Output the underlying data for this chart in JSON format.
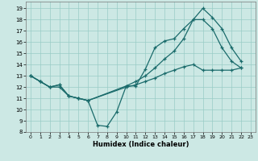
{
  "bg_color": "#cce8e4",
  "grid_color": "#99ccc6",
  "line_color": "#1a6b6b",
  "xlabel": "Humidex (Indice chaleur)",
  "xlim": [
    -0.5,
    23.5
  ],
  "ylim": [
    8,
    19.6
  ],
  "yticks": [
    8,
    9,
    10,
    11,
    12,
    13,
    14,
    15,
    16,
    17,
    18,
    19
  ],
  "xticks": [
    0,
    1,
    2,
    3,
    4,
    5,
    6,
    7,
    8,
    9,
    10,
    11,
    12,
    13,
    14,
    15,
    16,
    17,
    18,
    19,
    20,
    21,
    22,
    23
  ],
  "line1_x": [
    0,
    1,
    2,
    3,
    4,
    5,
    6,
    7,
    8,
    9,
    10,
    11,
    12,
    13,
    14,
    15,
    16,
    17,
    18,
    19,
    20,
    21,
    22
  ],
  "line1_y": [
    13,
    12.5,
    12.0,
    12.0,
    11.2,
    11.0,
    10.8,
    8.6,
    8.5,
    9.8,
    12.1,
    12.1,
    13.6,
    15.5,
    16.1,
    16.3,
    17.2,
    18.0,
    18.0,
    17.2,
    15.5,
    14.3,
    13.7
  ],
  "line2_x": [
    0,
    1,
    2,
    3,
    4,
    5,
    6,
    10,
    11,
    12,
    13,
    14,
    15,
    16,
    17,
    18,
    19,
    20,
    21,
    22
  ],
  "line2_y": [
    13,
    12.5,
    12.0,
    12.2,
    11.2,
    11.0,
    10.8,
    12.1,
    12.5,
    13.0,
    13.7,
    14.5,
    15.2,
    16.3,
    18.0,
    19.0,
    18.2,
    17.2,
    15.5,
    14.3
  ],
  "line3_x": [
    0,
    1,
    2,
    3,
    4,
    5,
    6,
    10,
    11,
    12,
    13,
    14,
    15,
    16,
    17,
    18,
    19,
    20,
    21,
    22
  ],
  "line3_y": [
    13,
    12.5,
    12.0,
    12.2,
    11.2,
    11.0,
    10.8,
    12.0,
    12.2,
    12.5,
    12.8,
    13.2,
    13.5,
    13.8,
    14.0,
    13.5,
    13.5,
    13.5,
    13.5,
    13.7
  ]
}
